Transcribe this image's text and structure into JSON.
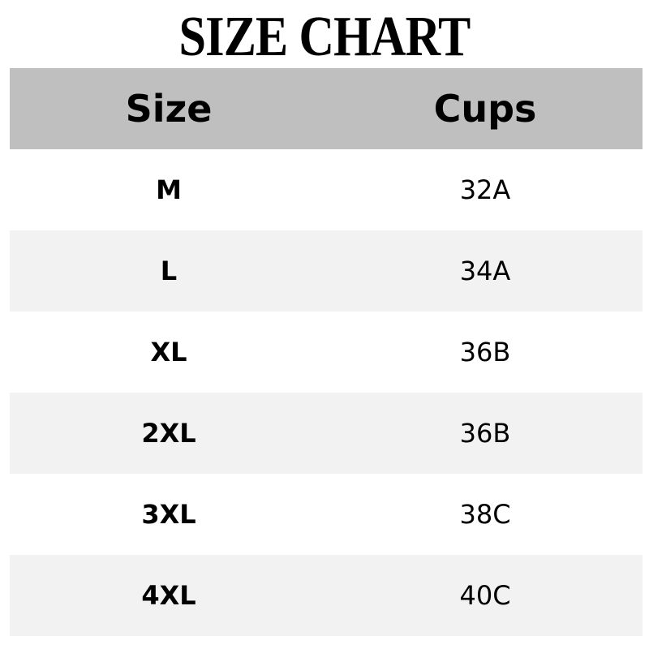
{
  "title": "SIZE CHART",
  "table": {
    "headers": [
      "Size",
      "Cups"
    ],
    "rows": [
      [
        "M",
        "32A"
      ],
      [
        "L",
        "34A"
      ],
      [
        "XL",
        "36B"
      ],
      [
        "2XL",
        "36B"
      ],
      [
        "3XL",
        "38C"
      ],
      [
        "4XL",
        "40C"
      ]
    ]
  },
  "colors": {
    "header_bg": "#bfbfbf",
    "alt_row_bg": "#f2f2f2",
    "row_bg": "#ffffff",
    "text": "#000000"
  }
}
